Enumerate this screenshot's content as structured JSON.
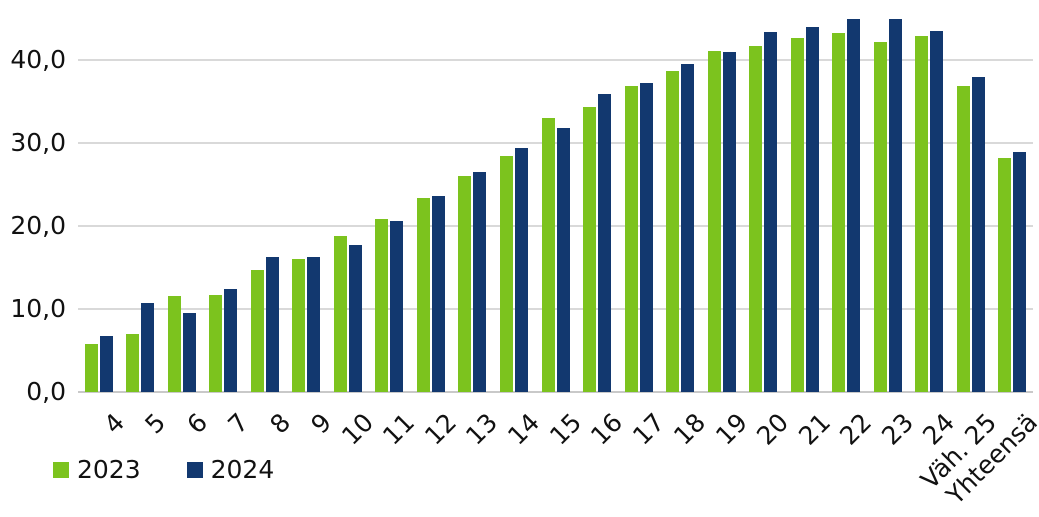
{
  "chart_data": {
    "type": "bar",
    "title": "",
    "xlabel": "",
    "ylabel": "",
    "categories": [
      "4",
      "5",
      "6",
      "7",
      "8",
      "9",
      "10",
      "11",
      "12",
      "13",
      "14",
      "15",
      "16",
      "17",
      "18",
      "19",
      "20",
      "21",
      "22",
      "23",
      "24",
      "Väh. 25",
      "Yhteensä"
    ],
    "series": [
      {
        "name": "2023",
        "color": "#7cc31e",
        "values": [
          5.8,
          7.0,
          11.6,
          11.7,
          14.7,
          16.1,
          18.8,
          20.9,
          23.4,
          26.1,
          28.5,
          33.0,
          34.4,
          36.9,
          38.7,
          41.2,
          41.7,
          42.7,
          43.3,
          42.2,
          43.0,
          36.9,
          28.2
        ]
      },
      {
        "name": "2024",
        "color": "#12386f",
        "values": [
          6.8,
          10.7,
          9.5,
          12.4,
          16.3,
          16.3,
          17.7,
          20.6,
          23.6,
          26.6,
          29.4,
          31.8,
          36.0,
          37.3,
          39.6,
          41.0,
          43.4,
          44.0,
          45.0,
          45.0,
          43.6,
          38.0,
          29.0
        ]
      }
    ],
    "ylim": [
      0,
      45
    ],
    "ytick_values": [
      0,
      10,
      20,
      30,
      40
    ],
    "ytick_labels": [
      "0,0",
      "10,0",
      "20,0",
      "30,0",
      "40,0"
    ],
    "grid": "horizontal",
    "gridline_color": "#d9d9d9",
    "axis_line_color": "#c9c9c9",
    "axis_text_color": "#111111",
    "x_label_rotation_deg": -45,
    "legend_position": "bottom-left"
  }
}
